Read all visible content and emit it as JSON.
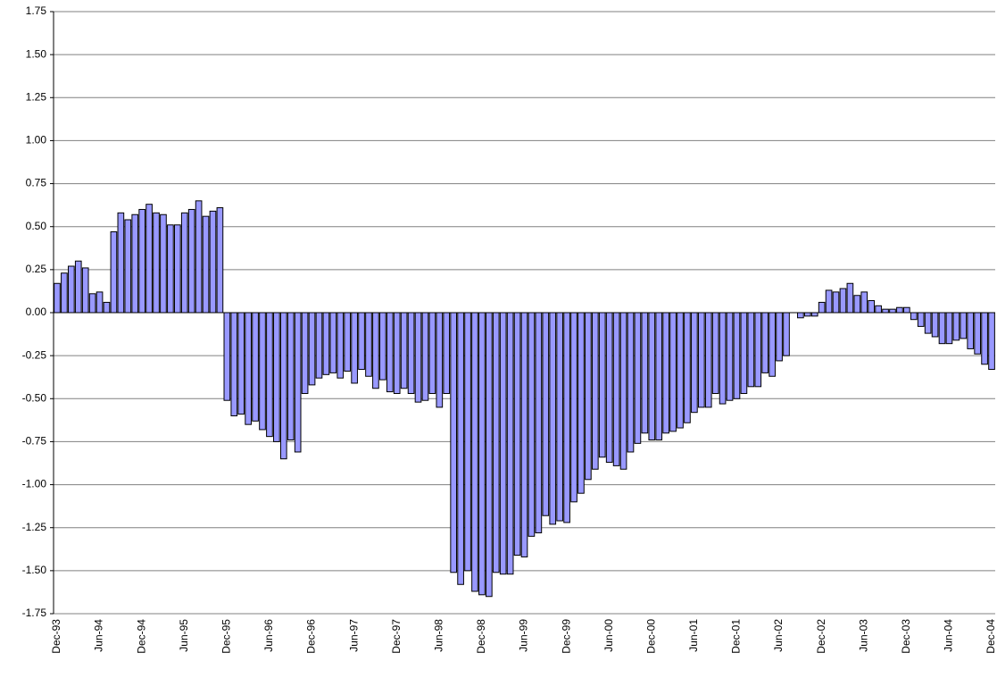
{
  "chart_data": {
    "type": "bar",
    "categories": [
      "Dec-93",
      null,
      null,
      null,
      null,
      null,
      "Jun-94",
      null,
      null,
      null,
      null,
      null,
      "Dec-94",
      null,
      null,
      null,
      null,
      null,
      "Jun-95",
      null,
      null,
      null,
      null,
      null,
      "Dec-95",
      null,
      null,
      null,
      null,
      null,
      "Jun-96",
      null,
      null,
      null,
      null,
      null,
      "Dec-96",
      null,
      null,
      null,
      null,
      null,
      "Jun-97",
      null,
      null,
      null,
      null,
      null,
      "Dec-97",
      null,
      null,
      null,
      null,
      null,
      "Jun-98",
      null,
      null,
      null,
      null,
      null,
      "Dec-98",
      null,
      null,
      null,
      null,
      null,
      "Jun-99",
      null,
      null,
      null,
      null,
      null,
      "Dec-99",
      null,
      null,
      null,
      null,
      null,
      "Jun-00",
      null,
      null,
      null,
      null,
      null,
      "Dec-00",
      null,
      null,
      null,
      null,
      null,
      "Jun-01",
      null,
      null,
      null,
      null,
      null,
      "Dec-01",
      null,
      null,
      null,
      null,
      null,
      "Jun-02",
      null,
      null,
      null,
      null,
      null,
      "Dec-02",
      null,
      null,
      null,
      null,
      null,
      "Jun-03",
      null,
      null,
      null,
      null,
      null,
      "Dec-03",
      null,
      null,
      null,
      null,
      null,
      "Jun-04",
      null,
      null,
      null,
      null,
      null,
      "Dec-04"
    ],
    "values": [
      0.17,
      0.23,
      0.27,
      0.3,
      0.26,
      0.11,
      0.12,
      0.06,
      0.47,
      0.58,
      0.54,
      0.57,
      0.6,
      0.63,
      0.58,
      0.57,
      0.51,
      0.51,
      0.58,
      0.6,
      0.65,
      0.56,
      0.59,
      0.61,
      -0.51,
      -0.6,
      -0.59,
      -0.65,
      -0.63,
      -0.68,
      -0.72,
      -0.75,
      -0.85,
      -0.74,
      -0.81,
      -0.47,
      -0.42,
      -0.38,
      -0.36,
      -0.35,
      -0.38,
      -0.34,
      -0.41,
      -0.33,
      -0.37,
      -0.44,
      -0.39,
      -0.46,
      -0.47,
      -0.44,
      -0.47,
      -0.52,
      -0.51,
      -0.47,
      -0.55,
      -0.47,
      -1.51,
      -1.58,
      -1.5,
      -1.62,
      -1.64,
      -1.65,
      -1.51,
      -1.52,
      -1.52,
      -1.41,
      -1.42,
      -1.3,
      -1.28,
      -1.18,
      -1.23,
      -1.21,
      -1.22,
      -1.1,
      -1.05,
      -0.97,
      -0.91,
      -0.84,
      -0.87,
      -0.89,
      -0.91,
      -0.81,
      -0.76,
      -0.7,
      -0.74,
      -0.74,
      -0.7,
      -0.69,
      -0.67,
      -0.64,
      -0.58,
      -0.55,
      -0.55,
      -0.47,
      -0.53,
      -0.51,
      -0.5,
      -0.47,
      -0.43,
      -0.43,
      -0.35,
      -0.37,
      -0.28,
      -0.25,
      0,
      -0.03,
      -0.02,
      -0.02,
      0.06,
      0.13,
      0.12,
      0.14,
      0.17,
      0.1,
      0.12,
      0.07,
      0.04,
      0.02,
      0.02,
      0.03,
      0.03,
      -0.04,
      -0.08,
      -0.12,
      -0.14,
      -0.18,
      -0.18,
      -0.16,
      -0.15,
      -0.21,
      -0.24,
      -0.3,
      -0.33
    ],
    "color": "#9999ff",
    "ylim": [
      -1.75,
      1.75
    ],
    "yticks": [
      -1.75,
      {
        "value": -1.5,
        "label": "-1.50"
      },
      -1.25,
      {
        "value": -1,
        "label": "-1.00"
      },
      -0.75,
      {
        "value": -0.5,
        "label": "-0.50"
      },
      -0.25,
      {
        "value": 0,
        "label": "0.00"
      },
      0.25,
      {
        "value": 0.5,
        "label": "0.50"
      },
      0.75,
      {
        "value": 1,
        "label": "1.00"
      },
      1.25,
      {
        "value": 1.5,
        "label": "1.50"
      },
      1.75
    ],
    "grid": true
  }
}
